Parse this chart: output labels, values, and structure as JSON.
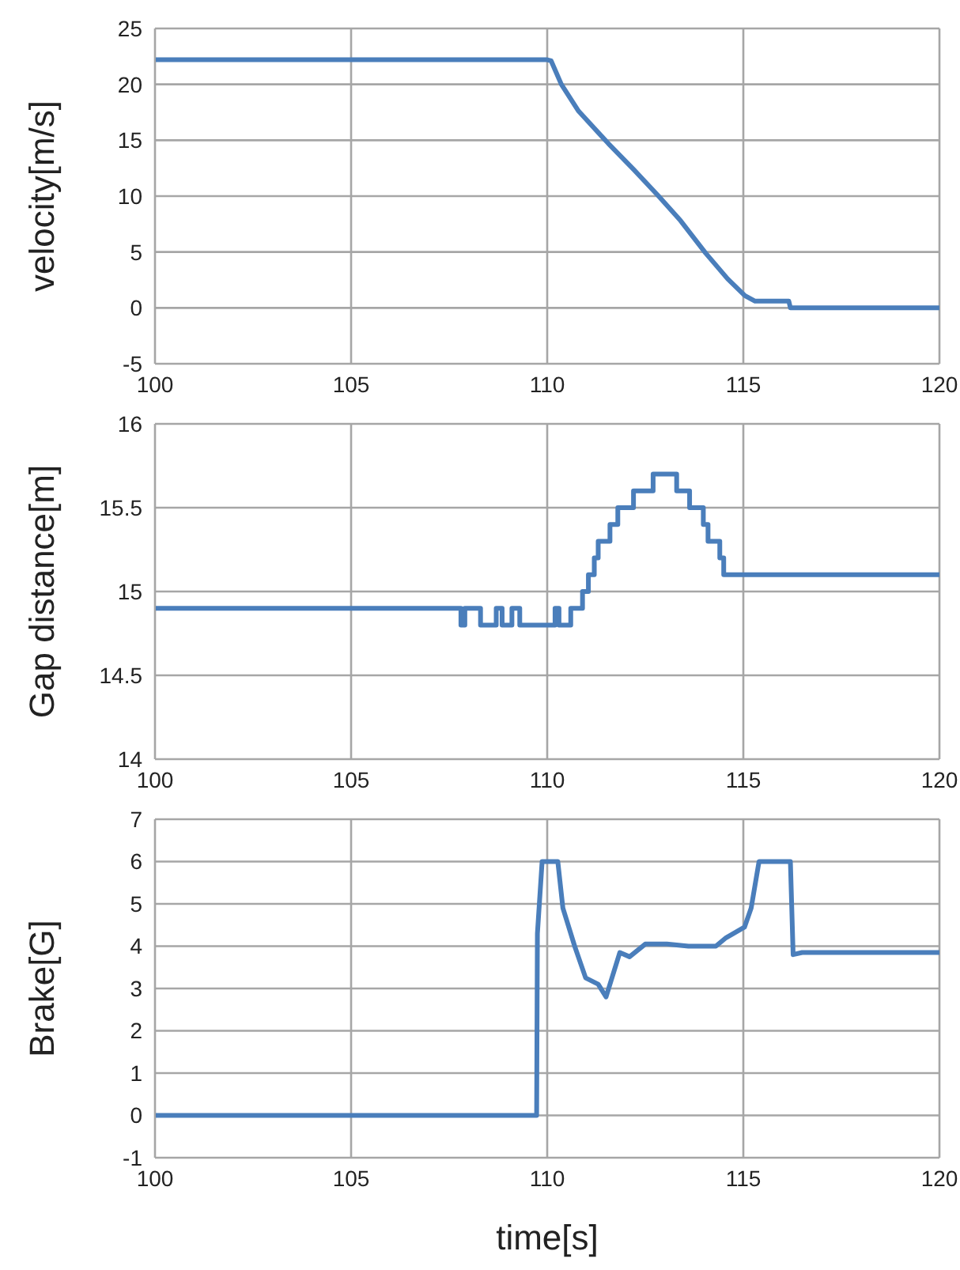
{
  "chart_data": [
    {
      "type": "line",
      "ylabel": "velocity[m/s]",
      "color": "#4a7ebb",
      "grid": true,
      "xlim": [
        100,
        120
      ],
      "xticks": [
        100,
        105,
        110,
        115,
        120
      ],
      "ylim": [
        -5,
        25
      ],
      "yticks": [
        -5,
        0,
        5,
        10,
        15,
        20,
        25
      ],
      "x": [
        100,
        102,
        104,
        106,
        108,
        110,
        110.1,
        110.36,
        110.8,
        111.56,
        112.2,
        112.84,
        113.4,
        114.04,
        114.6,
        115.04,
        115.3,
        116.16,
        116.2,
        118,
        120
      ],
      "values": [
        22.2,
        22.2,
        22.2,
        22.2,
        22.2,
        22.2,
        22.1,
        20,
        17.6,
        14.7,
        12.4,
        10,
        7.8,
        4.9,
        2.6,
        1.1,
        0.6,
        0.6,
        0,
        0,
        0
      ]
    },
    {
      "type": "step",
      "ylabel": "Gap distance[m]",
      "color": "#4a7ebb",
      "grid": true,
      "xlim": [
        100,
        120
      ],
      "xticks": [
        100,
        105,
        110,
        115,
        120
      ],
      "ylim": [
        14,
        16
      ],
      "yticks": [
        14,
        14.5,
        15,
        15.5,
        16
      ],
      "x": [
        100,
        107.8,
        107.9,
        108.3,
        108.7,
        108.85,
        109.1,
        109.3,
        110.2,
        110.3,
        110.6,
        110.9,
        111.05,
        111.2,
        111.3,
        111.6,
        111.8,
        112.2,
        112.7,
        113.3,
        113.63,
        113.98,
        114.1,
        114.4,
        114.5,
        114.99,
        120
      ],
      "values": [
        14.9,
        14.8,
        14.9,
        14.8,
        14.9,
        14.8,
        14.9,
        14.8,
        14.9,
        14.8,
        14.9,
        15,
        15.1,
        15.2,
        15.3,
        15.4,
        15.5,
        15.6,
        15.7,
        15.6,
        15.5,
        15.4,
        15.3,
        15.2,
        15.1,
        15.1,
        15.1
      ]
    },
    {
      "type": "line",
      "ylabel": "Brake[G]",
      "xlabel": "time[s]",
      "color": "#4a7ebb",
      "grid": true,
      "xlim": [
        100,
        120
      ],
      "xticks": [
        100,
        105,
        110,
        115,
        120
      ],
      "ylim": [
        -1,
        7
      ],
      "yticks": [
        -1,
        0,
        1,
        2,
        3,
        4,
        5,
        6,
        7
      ],
      "x": [
        100,
        105,
        109.73,
        109.75,
        109.87,
        110.27,
        110.4,
        110.5,
        110.7,
        110.98,
        111.3,
        111.5,
        111.85,
        112.1,
        112.5,
        113.05,
        113.6,
        114.3,
        114.56,
        115.03,
        115.2,
        115.4,
        116.2,
        116.27,
        116.5,
        120
      ],
      "values": [
        0,
        0,
        0,
        4.3,
        6,
        6,
        4.9,
        4.6,
        4,
        3.25,
        3.1,
        2.8,
        3.85,
        3.75,
        4.05,
        4.05,
        4,
        4,
        4.2,
        4.45,
        4.9,
        6,
        6,
        3.8,
        3.85,
        3.85
      ]
    }
  ]
}
